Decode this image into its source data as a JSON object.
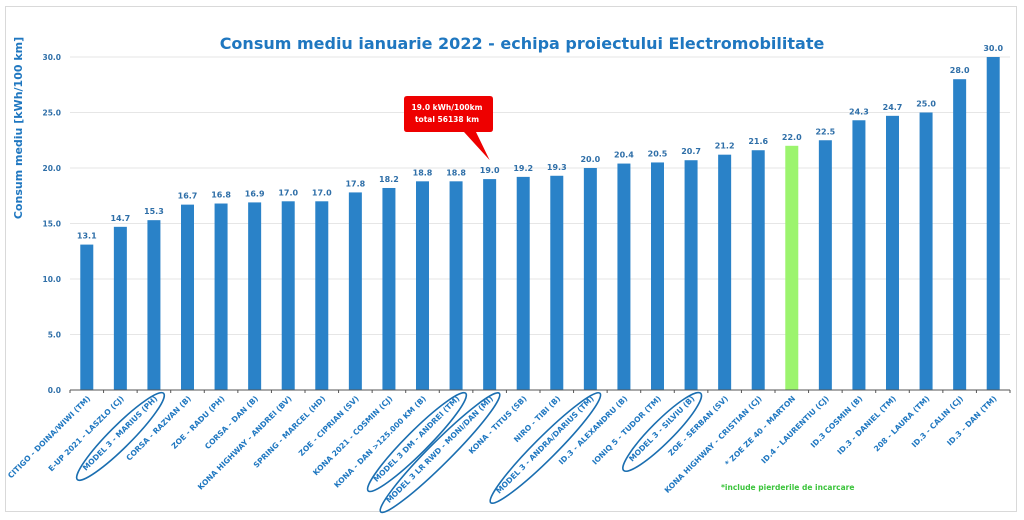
{
  "chart_data": {
    "type": "bar",
    "title": "Consum mediu ianuarie 2022 - echipa proiectului Electromobilitate",
    "xlabel": "",
    "ylabel": "Consum mediu [kWh/100 km]",
    "ylim": [
      0,
      30
    ],
    "yticks": [
      "0.0",
      "5.0",
      "10.0",
      "15.0",
      "20.0",
      "25.0",
      "30.0"
    ],
    "grid": true,
    "categories": [
      "CITIGO - DOINA/WIWI (TM)",
      "E-UP 2021 - LASZLO (CJ)",
      "MODEL 3 - MARIUS (PH)",
      "CORSA - RAZVAN (B)",
      "ZOE - RADU (PH)",
      "CORSA - DAN (B)",
      "KONA HIGHWAY - ANDREI (BV)",
      "SPRING - MARCEL (HD)",
      "ZOE - CIPRIAN (SV)",
      "KONA 2021 - COSMIN (CJ)",
      "KONA - DAN >125.000 KM (B)",
      "MODEL 3 DM - ANDREI (TM)",
      "MODEL 3 LR RWD - MONI/DAN (MI)",
      "KONA - TITUS (SB)",
      "NIRO - TIBI (B)",
      "MODEL 3 - ANDRA/DARIUS (TM)",
      "ID.3 - ALEXANDRU (B)",
      "IONIQ 5 - TUDOR (TM)",
      "MODEL 3 - SILVIU (B)",
      "ZOE - SERBAN (SV)",
      "KONA HIGHWAY - CRISTIAN (CJ)",
      "* ZOE ZE 40 - MARTON",
      "ID.4 - LAURENTIU (CJ)",
      "ID.3 COSMIN (B)",
      "ID.3 - DANIEL (TM)",
      "208 - LAURA (TM)",
      "ID.3 - CALIN (CJ)",
      "ID.3 - DAN (TM)"
    ],
    "values": [
      13.1,
      14.7,
      15.3,
      16.7,
      16.8,
      16.9,
      17.0,
      17.0,
      17.8,
      18.2,
      18.8,
      18.8,
      19.0,
      19.2,
      19.3,
      20.0,
      20.4,
      20.5,
      20.7,
      21.2,
      21.6,
      22.0,
      22.5,
      24.3,
      24.7,
      25.0,
      28.0,
      30.0
    ],
    "value_labels": [
      "13.1",
      "14.7",
      "15.3",
      "16.7",
      "16.8",
      "16.9",
      "17.0",
      "17.0",
      "17.8",
      "18.2",
      "18.8",
      "18.8",
      "19.0",
      "19.2",
      "19.3",
      "20.0",
      "20.4",
      "20.5",
      "20.7",
      "21.2",
      "21.6",
      "22.0",
      "22.5",
      "24.3",
      "24.7",
      "25.0",
      "28.0",
      "30.0"
    ],
    "highlighted_index": 21,
    "circled_indices": [
      2,
      11,
      12,
      15,
      18
    ],
    "colors": {
      "bar": "#2a82c8",
      "highlight": "#9cf46e",
      "text": "#1f77c0",
      "callout": "#ee0000",
      "note": "#3cc43c",
      "grid": "#e6e6e6"
    },
    "annotations": [
      {
        "type": "callout",
        "target_index": 12,
        "lines": [
          "19.0 kWh/100km",
          "total 56138 km"
        ]
      },
      {
        "type": "note",
        "text": "*include pierderile de incarcare",
        "placement": "bottom-right"
      }
    ],
    "legend": "none"
  }
}
